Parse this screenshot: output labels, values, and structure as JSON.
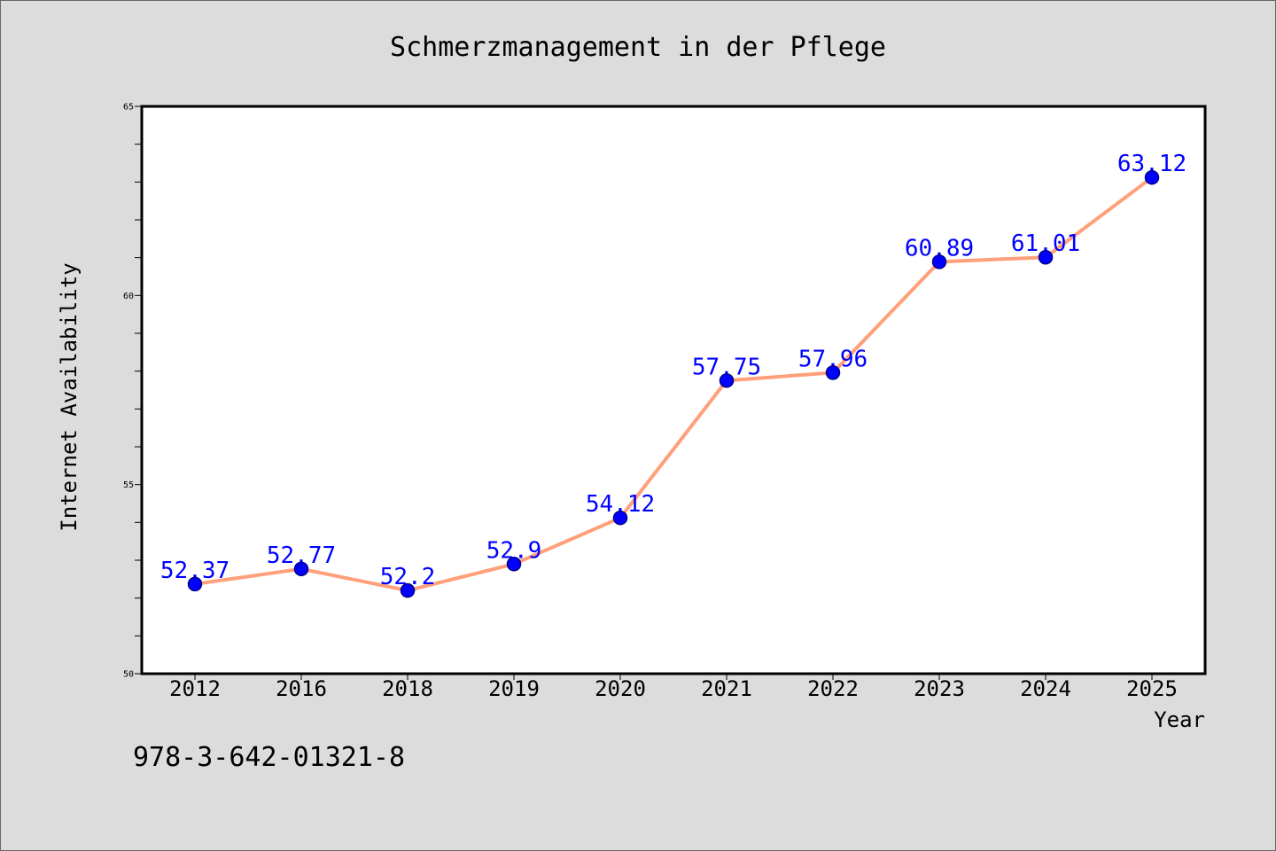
{
  "chart_data": {
    "type": "line",
    "title": "Schmerzmanagement in der Pflege",
    "xlabel": "Year",
    "ylabel": "Internet Availability",
    "categories": [
      "2012",
      "2016",
      "2018",
      "2019",
      "2020",
      "2021",
      "2022",
      "2023",
      "2024",
      "2025"
    ],
    "series": [
      {
        "values": [
          52.37,
          52.77,
          52.2,
          52.9,
          54.12,
          57.75,
          57.96,
          60.89,
          61.01,
          63.12
        ],
        "show_data_labels": true
      }
    ],
    "ylim": [
      50,
      65
    ],
    "yticks": [
      50,
      55,
      60,
      65
    ],
    "y_minor_tick_step": 1,
    "grid": false,
    "legend": false,
    "colors": {
      "figure_background": "#DCDCDC",
      "plot_background": "#FFFFFF",
      "line": "#FFA07A",
      "marker": "#0000FF",
      "marker_edge": "#00008B",
      "data_label": "#0000FF"
    }
  },
  "footer_text": "978-3-642-01321-8"
}
